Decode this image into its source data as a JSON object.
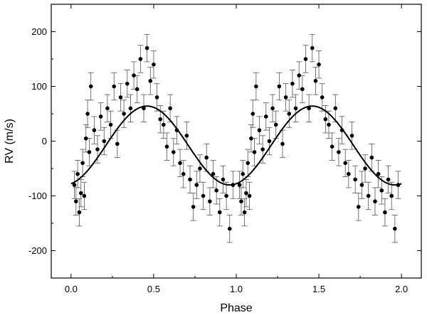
{
  "chart_data": {
    "type": "scatter",
    "title": "",
    "xlabel": "Phase",
    "ylabel": "RV (m/s)",
    "xlim": [
      -0.12,
      2.12
    ],
    "ylim": [
      -250,
      250
    ],
    "xticks": [
      0.0,
      0.5,
      1.0,
      1.5,
      2.0
    ],
    "xtick_labels": [
      "0.0",
      "0.5",
      "1.0",
      "1.5",
      "2.0"
    ],
    "yticks": [
      -200,
      -100,
      0,
      100,
      200
    ],
    "ytick_labels": [
      "-200",
      "-100",
      "0",
      "100",
      "200"
    ],
    "grid": false,
    "legend": "none",
    "error_bar_typical": 25,
    "model_curve": {
      "type": "sine",
      "amplitude": 72,
      "offset": -8,
      "period_in_phase": 1.0,
      "phase_of_maximum": 0.46,
      "x_range": [
        0.0,
        2.0
      ]
    },
    "series": [
      {
        "marker": "filled-circle",
        "x": [
          0.02,
          0.03,
          0.04,
          0.05,
          0.06,
          0.07,
          0.08,
          0.09,
          0.1,
          0.11,
          0.12,
          0.14,
          0.16,
          0.18,
          0.2,
          0.22,
          0.24,
          0.26,
          0.28,
          0.3,
          0.32,
          0.34,
          0.36,
          0.38,
          0.4,
          0.42,
          0.44,
          0.46,
          0.48,
          0.5,
          0.52,
          0.54,
          0.56,
          0.58,
          0.6,
          0.62,
          0.64,
          0.66,
          0.68,
          0.7,
          0.72,
          0.74,
          0.76,
          0.78,
          0.8,
          0.82,
          0.84,
          0.86,
          0.88,
          0.9,
          0.92,
          0.94,
          0.96,
          0.98
        ],
        "y": [
          -80,
          -110,
          -60,
          -130,
          -95,
          -40,
          -100,
          5,
          50,
          -20,
          100,
          20,
          -15,
          45,
          0,
          60,
          30,
          100,
          -5,
          80,
          50,
          105,
          60,
          120,
          95,
          150,
          60,
          170,
          110,
          140,
          80,
          40,
          30,
          -10,
          60,
          -20,
          20,
          -40,
          -60,
          10,
          -70,
          -120,
          -80,
          -50,
          -100,
          -30,
          -110,
          -60,
          -90,
          -130,
          -70,
          -100,
          -160,
          -80
        ],
        "y_err": [
          25,
          25,
          25,
          25,
          25,
          25,
          25,
          25,
          25,
          25,
          25,
          25,
          25,
          25,
          25,
          25,
          25,
          25,
          25,
          25,
          25,
          25,
          25,
          25,
          25,
          25,
          25,
          25,
          25,
          25,
          25,
          25,
          25,
          25,
          25,
          25,
          25,
          25,
          25,
          25,
          25,
          25,
          25,
          25,
          25,
          25,
          25,
          25,
          25,
          25,
          25,
          25,
          25,
          25
        ]
      },
      {
        "marker": "filled-circle",
        "x": [
          1.02,
          1.03,
          1.04,
          1.05,
          1.06,
          1.07,
          1.08,
          1.09,
          1.1,
          1.11,
          1.12,
          1.14,
          1.16,
          1.18,
          1.2,
          1.22,
          1.24,
          1.26,
          1.28,
          1.3,
          1.32,
          1.34,
          1.36,
          1.38,
          1.4,
          1.42,
          1.44,
          1.46,
          1.48,
          1.5,
          1.52,
          1.54,
          1.56,
          1.58,
          1.6,
          1.62,
          1.64,
          1.66,
          1.68,
          1.7,
          1.72,
          1.74,
          1.76,
          1.78,
          1.8,
          1.82,
          1.84,
          1.86,
          1.88,
          1.9,
          1.92,
          1.94,
          1.96,
          1.98
        ],
        "y": [
          -80,
          -110,
          -60,
          -130,
          -95,
          -40,
          -100,
          5,
          50,
          -20,
          100,
          20,
          -15,
          45,
          0,
          60,
          30,
          100,
          -5,
          80,
          50,
          105,
          60,
          120,
          95,
          150,
          60,
          170,
          110,
          140,
          80,
          40,
          30,
          -10,
          60,
          -20,
          20,
          -40,
          -60,
          10,
          -70,
          -120,
          -80,
          -50,
          -100,
          -30,
          -110,
          -60,
          -90,
          -130,
          -70,
          -100,
          -160,
          -80
        ],
        "y_err": [
          25,
          25,
          25,
          25,
          25,
          25,
          25,
          25,
          25,
          25,
          25,
          25,
          25,
          25,
          25,
          25,
          25,
          25,
          25,
          25,
          25,
          25,
          25,
          25,
          25,
          25,
          25,
          25,
          25,
          25,
          25,
          25,
          25,
          25,
          25,
          25,
          25,
          25,
          25,
          25,
          25,
          25,
          25,
          25,
          25,
          25,
          25,
          25,
          25,
          25,
          25,
          25,
          25,
          25
        ]
      }
    ]
  }
}
